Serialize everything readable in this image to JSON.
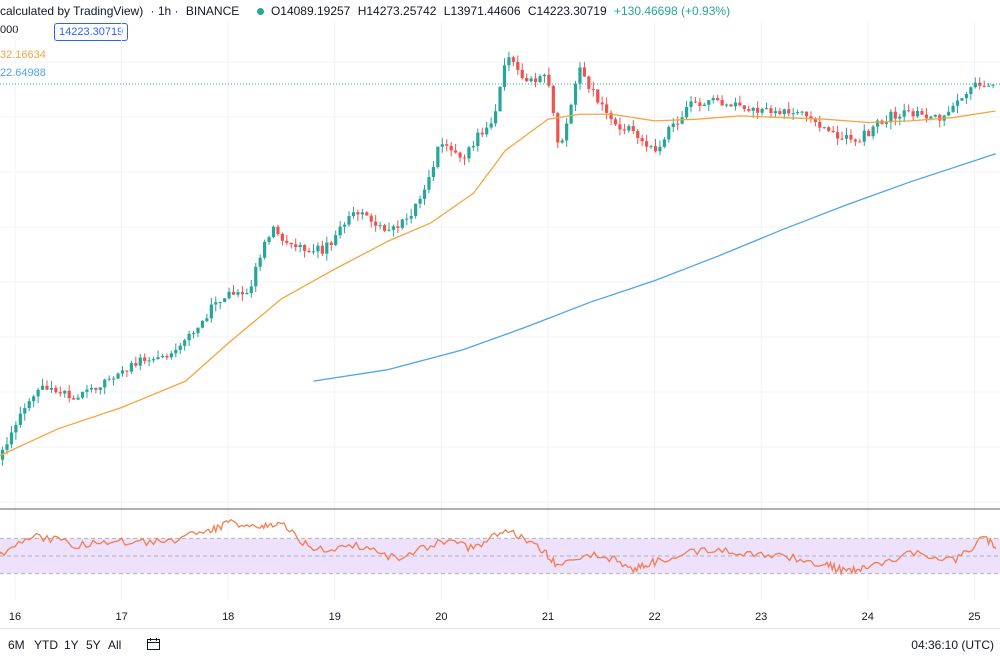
{
  "header": {
    "title_fragment": "calculated by TradingView)",
    "interval": "· 1h ·",
    "exchange": "BINANCE",
    "open": "O14089.19257",
    "high": "H14273.25742",
    "low": "L13971.44606",
    "close": "C14223.30719",
    "change": "+130.46698 (+0.93%)"
  },
  "left_values": {
    "row1": "000",
    "price_box": "14223.30719",
    "ma_short": "32.16634",
    "ma_long": "22.64988"
  },
  "bottom": {
    "ranges": [
      "6M",
      "YTD",
      "1Y",
      "5Y",
      "All"
    ],
    "time": "04:36:10 (UTC)"
  },
  "colors": {
    "up": "#26a69a",
    "down": "#ef5350",
    "ma_short": "#f7a440",
    "ma_long": "#4da5e6",
    "rsi_line": "#f57c4e",
    "rsi_band": "#ede1fb",
    "price_line": "#26a69a"
  },
  "chart_data": [
    {
      "type": "candlestick",
      "title": "",
      "x_tick_labels": [
        "16",
        "17",
        "18",
        "19",
        "20",
        "21",
        "22",
        "23",
        "24",
        "25"
      ],
      "current_price": 14223.30719,
      "series": [
        {
          "name": "",
          "kind": "close_path_estimate",
          "x": [
            15.8,
            16.2,
            16.6,
            16.9,
            17.2,
            17.5,
            17.9,
            18.2,
            18.4,
            18.6,
            18.9,
            19.2,
            19.5,
            19.8,
            20.0,
            20.2,
            20.5,
            20.6,
            20.8,
            21.0,
            21.1,
            21.3,
            21.6,
            21.8,
            22.0,
            22.3,
            22.5,
            22.8,
            23.0,
            23.4,
            23.7,
            23.9,
            24.2,
            24.4,
            24.7,
            25.0,
            25.2
          ],
          "y": [
            11900,
            12380,
            12320,
            12430,
            12560,
            12580,
            12910,
            12980,
            13350,
            13240,
            13220,
            13450,
            13310,
            13500,
            13880,
            13780,
            14040,
            14390,
            14250,
            14260,
            13830,
            14300,
            14000,
            13930,
            13820,
            14080,
            14130,
            14100,
            14060,
            14060,
            13900,
            13880,
            14030,
            14040,
            14010,
            14220,
            14223
          ]
        },
        {
          "name": "",
          "kind": "moving_average_short",
          "x": [
            15.8,
            16.4,
            17.0,
            17.6,
            18.0,
            18.5,
            19.0,
            19.5,
            19.9,
            20.3,
            20.6,
            21.0,
            21.3,
            21.6,
            22.0,
            22.4,
            22.8,
            23.2,
            23.6,
            24.0,
            24.4,
            24.8,
            25.2
          ],
          "y": [
            11950,
            12130,
            12260,
            12420,
            12650,
            12920,
            13100,
            13270,
            13380,
            13560,
            13820,
            14010,
            14040,
            14040,
            14000,
            14010,
            14030,
            14020,
            14010,
            13990,
            14000,
            14020,
            14060
          ]
        },
        {
          "name": "",
          "kind": "moving_average_long",
          "x": [
            18.8,
            19.5,
            20.2,
            20.8,
            21.4,
            22.0,
            22.6,
            23.2,
            23.8,
            24.4,
            25.2
          ],
          "y": [
            12420,
            12490,
            12610,
            12750,
            12900,
            13030,
            13180,
            13340,
            13490,
            13630,
            13800
          ]
        }
      ]
    },
    {
      "type": "line",
      "title": "",
      "ylim": [
        0,
        100
      ],
      "band": [
        30,
        70
      ],
      "x": [
        15.8,
        16.2,
        16.6,
        17.0,
        17.4,
        17.8,
        18.0,
        18.3,
        18.5,
        18.8,
        19.2,
        19.6,
        20.0,
        20.3,
        20.6,
        20.9,
        21.1,
        21.5,
        21.8,
        22.0,
        22.4,
        22.8,
        23.2,
        23.6,
        23.8,
        24.0,
        24.4,
        24.8,
        25.1,
        25.2
      ],
      "y": [
        48,
        73,
        62,
        66,
        66,
        77,
        88,
        84,
        86,
        56,
        62,
        46,
        68,
        58,
        80,
        62,
        38,
        52,
        36,
        43,
        56,
        54,
        50,
        40,
        32,
        37,
        54,
        44,
        71,
        58
      ]
    }
  ]
}
